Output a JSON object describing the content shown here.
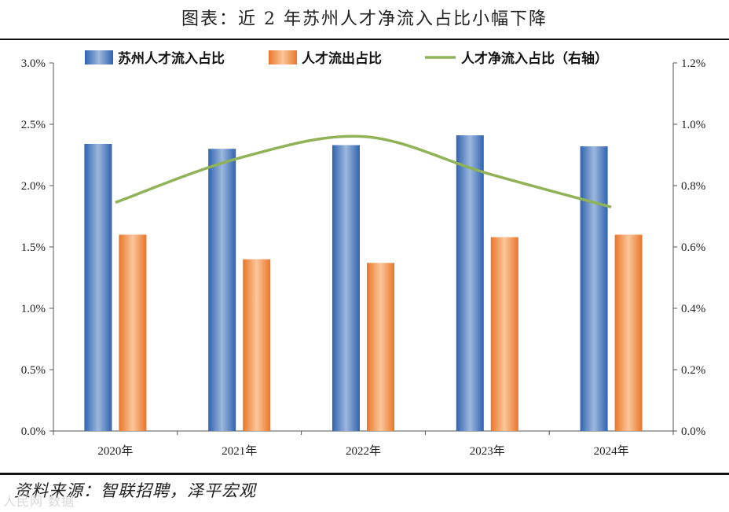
{
  "header": {
    "title": "图表：近 2 年苏州人才净流入占比小幅下降"
  },
  "footer": {
    "source": "资料来源：智联招聘，泽平宏观",
    "watermark": "人民网 数据"
  },
  "colors": {
    "inflow": "#3d6fb6",
    "outflow": "#ef8a3c",
    "net": "#8fb356"
  },
  "chart_data": {
    "type": "bar",
    "categories": [
      "2020年",
      "2021年",
      "2022年",
      "2023年",
      "2024年"
    ],
    "series": [
      {
        "name": "苏州人才流入占比",
        "axis": "left",
        "kind": "bar",
        "values": [
          2.34,
          2.3,
          2.33,
          2.41,
          2.32
        ]
      },
      {
        "name": "人才流出占比",
        "axis": "left",
        "kind": "bar",
        "values": [
          1.6,
          1.4,
          1.37,
          1.58,
          1.6
        ]
      },
      {
        "name": "人才净流入占比（右轴）",
        "axis": "right",
        "kind": "line",
        "values": [
          0.745,
          0.89,
          0.96,
          0.84,
          0.73
        ]
      }
    ],
    "y_left": {
      "min": 0,
      "max": 3.0,
      "ticks": [
        "0.0%",
        "0.5%",
        "1.0%",
        "1.5%",
        "2.0%",
        "2.5%",
        "3.0%"
      ]
    },
    "y_right": {
      "min": 0,
      "max": 1.2,
      "ticks": [
        "0.0%",
        "0.2%",
        "0.4%",
        "0.6%",
        "0.8%",
        "1.0%",
        "1.2%"
      ]
    }
  }
}
